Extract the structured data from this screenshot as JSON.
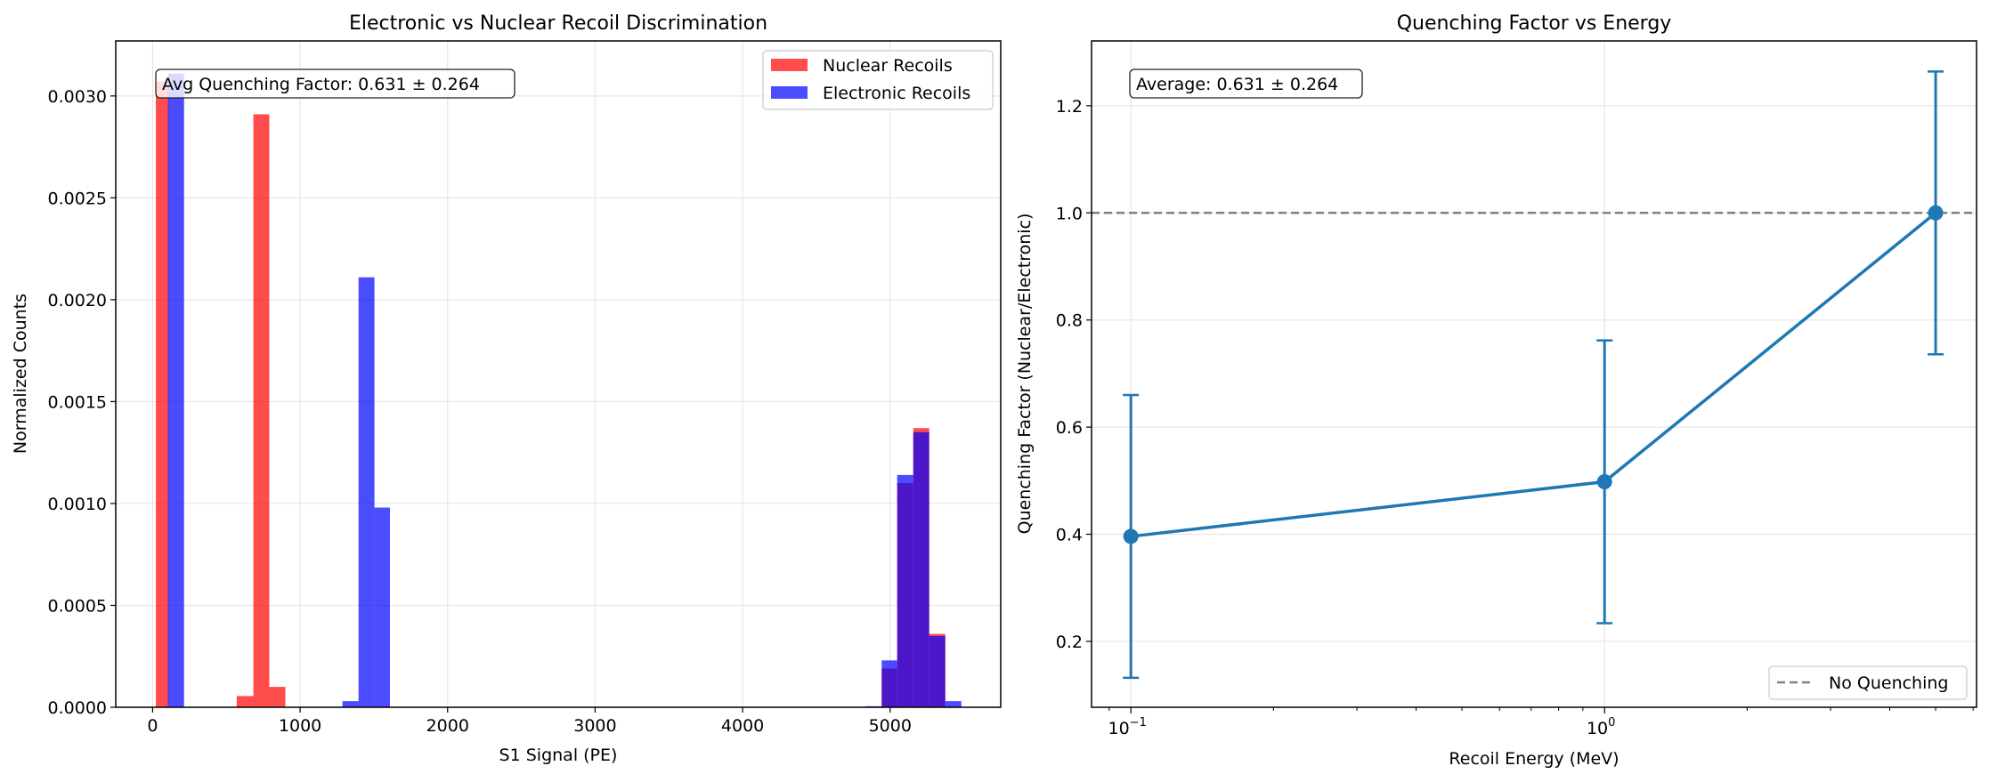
{
  "chart_data": [
    {
      "type": "bar",
      "subtype": "histogram",
      "title": "Electronic vs Nuclear Recoil Discrimination",
      "xlabel": "S1 Signal (PE)",
      "ylabel": "Normalized Counts",
      "xlim": [
        -250,
        5750
      ],
      "ylim": [
        0,
        0.00327
      ],
      "xticks": [
        0,
        1000,
        2000,
        3000,
        4000,
        5000
      ],
      "xtick_labels": [
        "0",
        "1000",
        "2000",
        "3000",
        "4000",
        "5000"
      ],
      "yticks": [
        0,
        0.0005,
        0.001,
        0.0015,
        0.002,
        0.0025,
        0.003
      ],
      "ytick_labels": [
        "0.0000",
        "0.0005",
        "0.0010",
        "0.0015",
        "0.0020",
        "0.0025",
        "0.0030"
      ],
      "grid": true,
      "legend_position": "top-right",
      "annotation": "Avg Quenching Factor: 0.631 ± 0.264",
      "series": [
        {
          "name": "Nuclear Recoils",
          "color": "#ff0000",
          "alpha": 0.7,
          "bins": [
            {
              "x0": 22,
              "x1": 108,
              "value": 0.00307
            },
            {
              "x0": 570,
              "x1": 683,
              "value": 5.5e-05
            },
            {
              "x0": 683,
              "x1": 791,
              "value": 0.00291
            },
            {
              "x0": 791,
              "x1": 900,
              "value": 0.0001
            },
            {
              "x0": 4943,
              "x1": 5048,
              "value": 0.00019
            },
            {
              "x0": 5048,
              "x1": 5157,
              "value": 0.0011
            },
            {
              "x0": 5157,
              "x1": 5265,
              "value": 0.00137
            },
            {
              "x0": 5265,
              "x1": 5374,
              "value": 0.00036
            }
          ]
        },
        {
          "name": "Electronic Recoils",
          "color": "#0000ff",
          "alpha": 0.7,
          "bins": [
            {
              "x0": 104,
              "x1": 213,
              "value": 0.00311
            },
            {
              "x0": 1287,
              "x1": 1396,
              "value": 3e-05
            },
            {
              "x0": 1396,
              "x1": 1504,
              "value": 0.00211
            },
            {
              "x0": 1504,
              "x1": 1609,
              "value": 0.00098
            },
            {
              "x0": 4835,
              "x1": 4943,
              "value": 5e-06
            },
            {
              "x0": 4943,
              "x1": 5048,
              "value": 0.00023
            },
            {
              "x0": 5048,
              "x1": 5157,
              "value": 0.00114
            },
            {
              "x0": 5157,
              "x1": 5265,
              "value": 0.00135
            },
            {
              "x0": 5265,
              "x1": 5374,
              "value": 0.00035
            },
            {
              "x0": 5374,
              "x1": 5483,
              "value": 3e-05
            }
          ]
        }
      ]
    },
    {
      "type": "line",
      "title": "Quenching Factor vs Energy",
      "xlabel": "Recoil Energy (MeV)",
      "ylabel": "Quenching Factor (Nuclear/Electronic)",
      "xscale": "log",
      "xlim": [
        0.0826,
        6.1
      ],
      "ylim": [
        0.077,
        1.321
      ],
      "xticks": [
        0.1,
        1
      ],
      "xtick_labels": [
        {
          "base": "10",
          "exp": "−1"
        },
        {
          "base": "10",
          "exp": "0"
        }
      ],
      "yticks": [
        0.2,
        0.4,
        0.6,
        0.8,
        1.0,
        1.2
      ],
      "ytick_labels": [
        "0.2",
        "0.4",
        "0.6",
        "0.8",
        "1.0",
        "1.2"
      ],
      "grid": true,
      "legend_position": "bottom-right",
      "annotation": "Average: 0.631 ± 0.264",
      "series": [
        {
          "name": "Quenching Factor",
          "color": "#1f77b4",
          "x": [
            0.1,
            1.0,
            5.0
          ],
          "y": [
            0.396,
            0.498,
            1.0
          ],
          "yerr": [
            0.264,
            0.264,
            0.264
          ]
        }
      ],
      "reference_line": {
        "name": "No Quenching",
        "y": 1.0,
        "color": "#808080",
        "style": "dashed"
      }
    }
  ]
}
